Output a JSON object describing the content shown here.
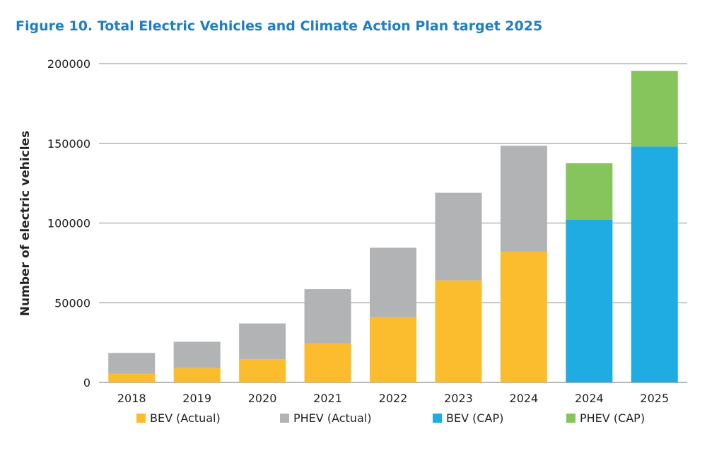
{
  "title": "Figure 10. Total Electric Vehicles and Climate Action Plan target 2025",
  "colors": {
    "title": "#1f7fc0",
    "bev_actual": "#fbbd2e",
    "phev_actual": "#b1b3b4",
    "bev_cap": "#1eace2",
    "phev_cap": "#86c55c",
    "gridline": "#8c8c8c"
  },
  "chart_data": {
    "type": "bar",
    "stacked": true,
    "title": "Figure 10. Total Electric Vehicles and Climate Action Plan target 2025",
    "xlabel": "",
    "ylabel": "Number of electric vehicles",
    "ylim": [
      0,
      200000
    ],
    "yticks": [
      "0",
      "50000",
      "100000",
      "150000",
      "200000"
    ],
    "ytick_values": [
      0,
      50000,
      100000,
      150000,
      200000
    ],
    "grid": true,
    "categories": [
      "2018",
      "2019",
      "2020",
      "2021",
      "2022",
      "2023",
      "2024",
      "2024",
      "2025"
    ],
    "series": [
      {
        "name": "BEV (Actual)",
        "color_key": "bev_actual",
        "values": [
          5500,
          9000,
          14500,
          24500,
          41000,
          64000,
          82000,
          0,
          0
        ]
      },
      {
        "name": "PHEV (Actual)",
        "color_key": "phev_actual",
        "values": [
          13000,
          16500,
          22500,
          34000,
          43500,
          55000,
          66500,
          0,
          0
        ]
      },
      {
        "name": "BEV (CAP)",
        "color_key": "bev_cap",
        "values": [
          0,
          0,
          0,
          0,
          0,
          0,
          0,
          102000,
          148000
        ]
      },
      {
        "name": "PHEV (CAP)",
        "color_key": "phev_cap",
        "values": [
          0,
          0,
          0,
          0,
          0,
          0,
          0,
          35500,
          47500
        ]
      }
    ],
    "legend_position": "bottom"
  }
}
